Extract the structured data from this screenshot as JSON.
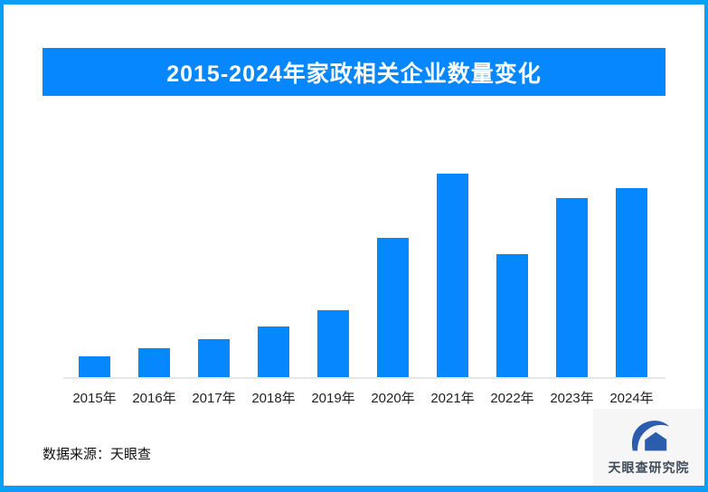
{
  "title_banner": {
    "text": "2015-2024年家政相关企业数量变化"
  },
  "chart_data": {
    "type": "bar",
    "title": "2015-2024年家政相关企业数量变化",
    "categories": [
      "2015年",
      "2016年",
      "2017年",
      "2018年",
      "2019年",
      "2020年",
      "2021年",
      "2022年",
      "2023年",
      "2024年"
    ],
    "values": [
      10.3,
      14.3,
      18.8,
      25.0,
      33.0,
      68.3,
      100.0,
      60.3,
      87.9,
      92.9
    ],
    "value_unit": "relative bar height, percent of tallest bar (2021); chart shows no numeric axis or data labels",
    "xlabel": "",
    "ylabel": "",
    "ylim": [
      0,
      100
    ],
    "grid": false,
    "legend": null,
    "bar_color": "#0787fe",
    "axis_line_color": "#e6e6e6",
    "x_tick_color": "#222222"
  },
  "footer": {
    "data_source": "数据来源：天眼查"
  },
  "logo": {
    "name": "天眼查研究院",
    "mark": "tianyancha-eye-logo",
    "mark_color": "#2b5cad",
    "text_color": "#3f4c58",
    "card_bg": "#f6f6f6"
  },
  "colors": {
    "frame_border": "#0a9ef7",
    "banner_bg": "#0787fe",
    "banner_text": "#ffffff",
    "background": "#ffffff"
  }
}
